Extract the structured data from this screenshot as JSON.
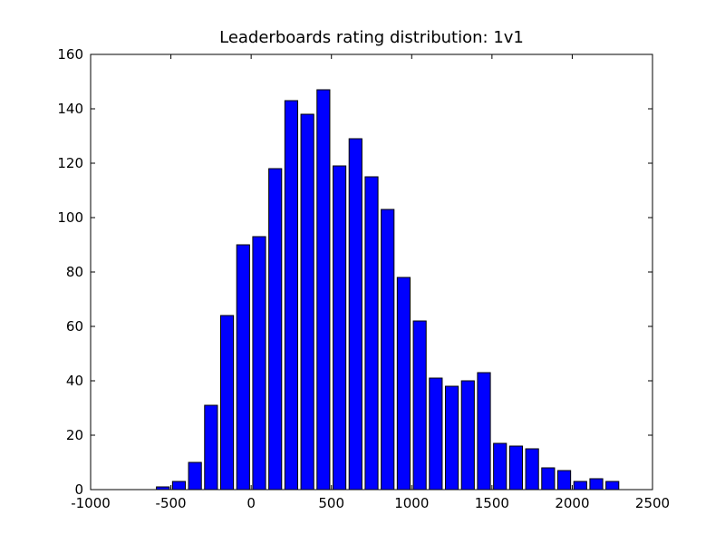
{
  "chart_data": {
    "type": "histogram",
    "title": "Leaderboards rating distribution: 1v1",
    "bins": [
      -600,
      -500,
      -400,
      -300,
      -200,
      -100,
      0,
      100,
      200,
      300,
      400,
      500,
      600,
      700,
      800,
      900,
      1000,
      1100,
      1200,
      1300,
      1400,
      1500,
      1600,
      1700,
      1800,
      1900,
      2000,
      2100,
      2200,
      2300
    ],
    "values": [
      1,
      3,
      10,
      31,
      64,
      90,
      93,
      118,
      143,
      138,
      147,
      119,
      129,
      115,
      103,
      78,
      62,
      41,
      38,
      40,
      43,
      17,
      16,
      15,
      8,
      7,
      3,
      4,
      3
    ],
    "color": "#0000ff",
    "xlim": [
      -1000,
      2500
    ],
    "xticks": [
      -1000,
      -500,
      0,
      500,
      1000,
      1500,
      2000,
      2500
    ],
    "ylim": [
      0,
      160
    ],
    "yticks": [
      0,
      20,
      40,
      60,
      80,
      100,
      120,
      140,
      160
    ]
  }
}
